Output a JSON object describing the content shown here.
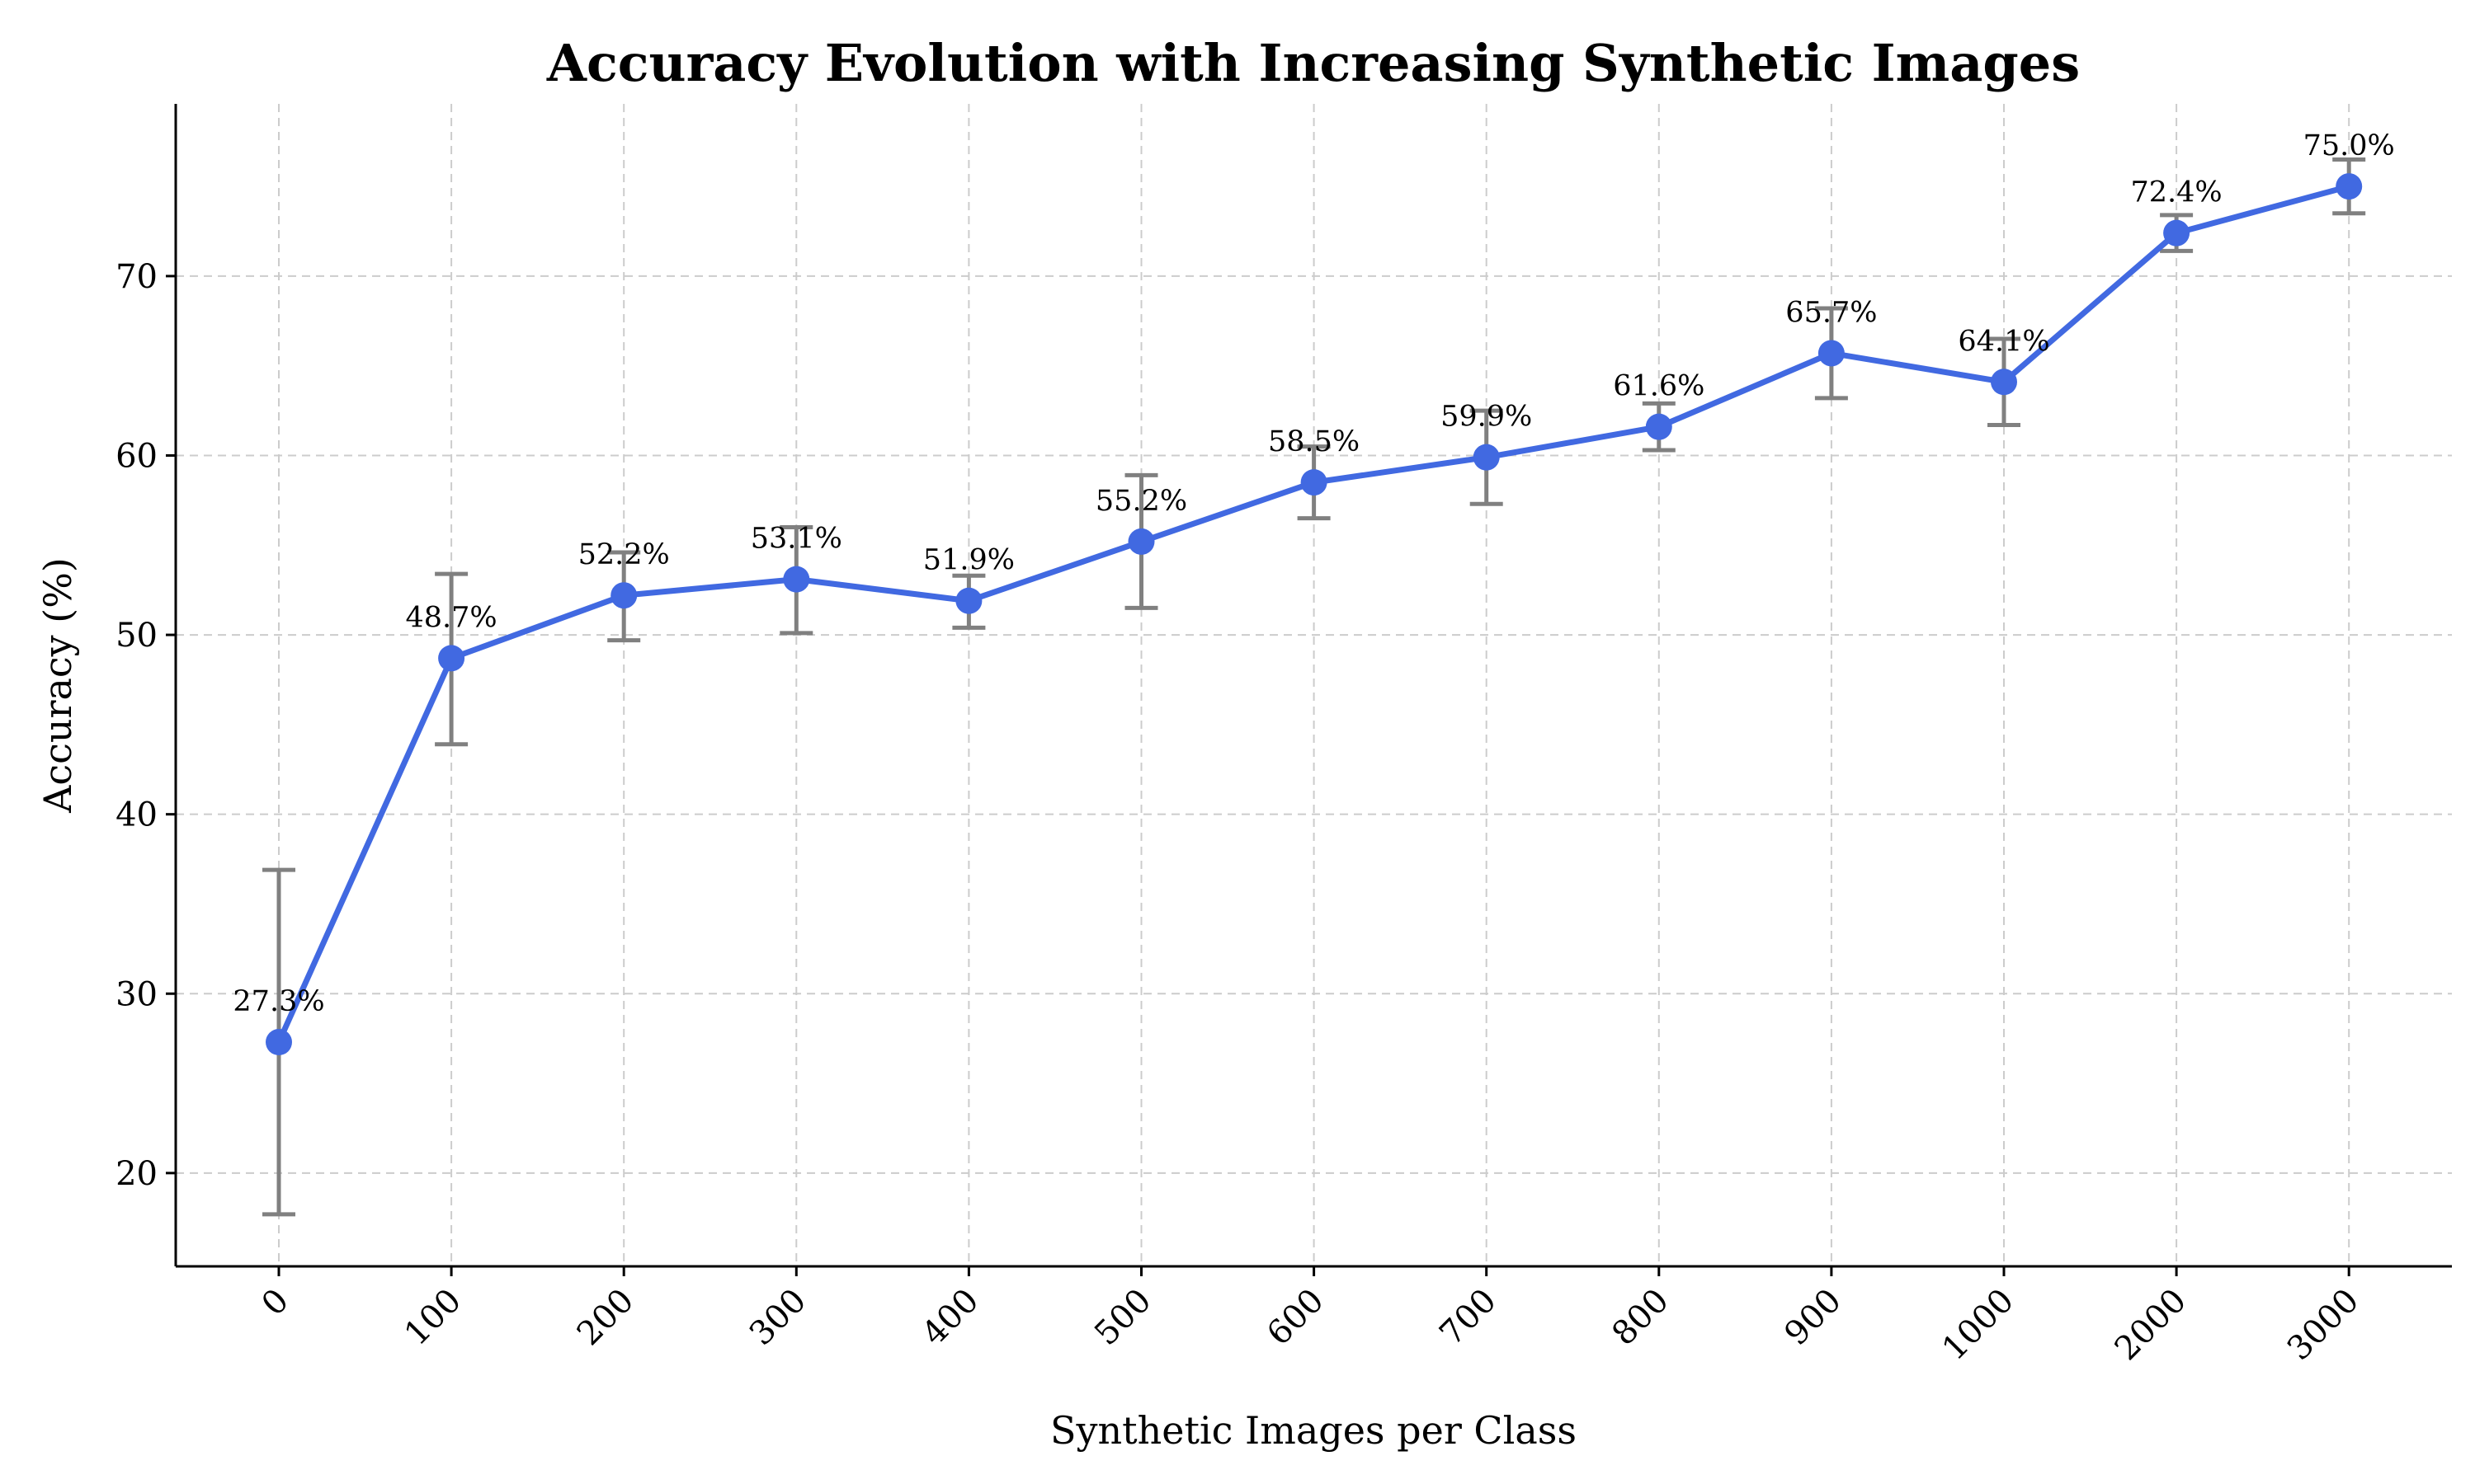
{
  "chart_data": {
    "type": "line",
    "title": "Accuracy Evolution with Increasing Synthetic Images",
    "xlabel": "Synthetic Images per Class",
    "ylabel": "Accuracy (%)",
    "categories": [
      "0",
      "100",
      "200",
      "300",
      "400",
      "500",
      "600",
      "700",
      "800",
      "900",
      "1000",
      "2000",
      "3000"
    ],
    "series": [
      {
        "values": [
          27.3,
          48.7,
          52.2,
          53.1,
          51.9,
          55.2,
          58.5,
          59.9,
          61.6,
          65.7,
          64.1,
          72.4,
          75.0
        ],
        "error_low": [
          17.7,
          43.9,
          49.7,
          50.1,
          50.4,
          51.5,
          56.5,
          57.3,
          60.3,
          63.2,
          61.7,
          71.4,
          73.5
        ],
        "error_high": [
          36.9,
          53.4,
          54.6,
          56.0,
          53.3,
          58.9,
          60.5,
          62.5,
          62.9,
          68.2,
          66.5,
          73.4,
          76.5
        ],
        "point_labels": [
          "27.3%",
          "48.7%",
          "52.2%",
          "53.1%",
          "51.9%",
          "55.2%",
          "58.5%",
          "59.9%",
          "61.6%",
          "65.7%",
          "64.1%",
          "72.4%",
          "75.0%"
        ]
      }
    ],
    "yticks": [
      "20",
      "30",
      "40",
      "50",
      "60",
      "70"
    ],
    "ylim": [
      14.8,
      79.6
    ],
    "grid": true,
    "colors": {
      "line": "#4169e1",
      "marker": "#4169e1",
      "errorbar": "#808080",
      "grid": "#cccccc"
    }
  }
}
